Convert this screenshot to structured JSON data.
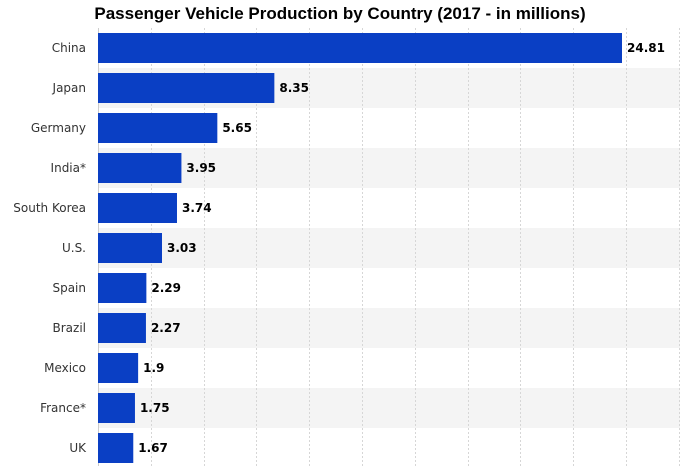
{
  "chart_data": {
    "type": "bar",
    "orientation": "horizontal",
    "title": "Passenger Vehicle Production by Country (2017 - in millions)",
    "xlabel": "",
    "ylabel": "",
    "categories": [
      "China",
      "Japan",
      "Germany",
      "India*",
      "South Korea",
      "U.S.",
      "Spain",
      "Brazil",
      "Mexico",
      "France*",
      "UK"
    ],
    "values": [
      24.81,
      8.35,
      5.65,
      3.95,
      3.74,
      3.03,
      2.29,
      2.27,
      1.9,
      1.75,
      1.67
    ],
    "value_labels": [
      "24.81",
      "8.35",
      "5.65",
      "3.95",
      "3.74",
      "3.03",
      "2.29",
      "2.27",
      "1.9",
      "1.75",
      "1.67"
    ],
    "xlim": [
      0,
      27.5
    ],
    "grid_step": 2.5,
    "grid": true,
    "legend": false,
    "bar_color": "#0a3fc4",
    "alt_row_color": "#f4f4f4",
    "grid_color": "#d6d6d6"
  }
}
